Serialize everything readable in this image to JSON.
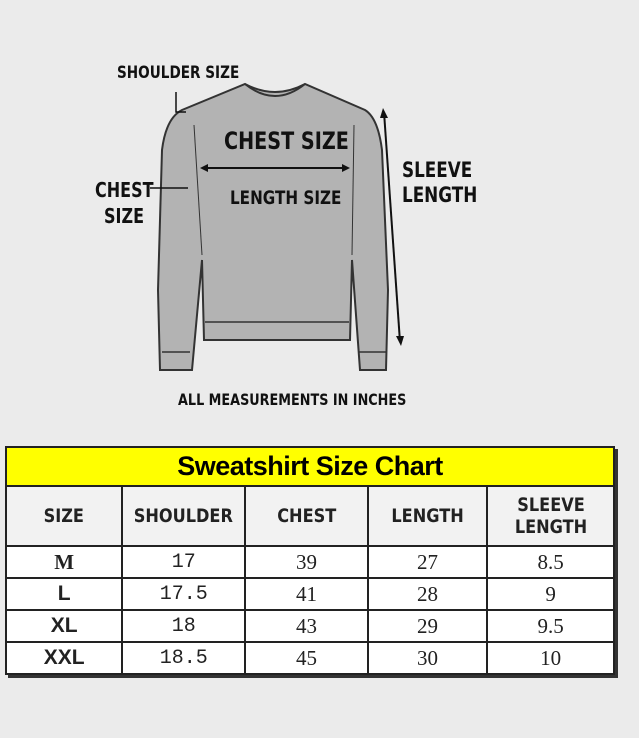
{
  "diagram": {
    "labels": {
      "shoulder": "SHOULDER SIZE",
      "chest_side": "CHEST",
      "chest_side2": "SIZE",
      "chest_center": "CHEST SIZE",
      "length_center": "LENGTH SIZE",
      "sleeve": "SLEEVE",
      "sleeve2": "LENGTH",
      "note": "ALL MEASUREMENTS IN INCHES"
    },
    "colors": {
      "shirt": "#b3b3b3",
      "title_bg": "#ffff00"
    }
  },
  "table": {
    "title": "Sweatshirt Size Chart",
    "headers": [
      "SIZE",
      "SHOULDER",
      "CHEST",
      "LENGTH",
      "SLEEVE LENGTH"
    ],
    "rows": [
      [
        "M",
        "17",
        "39",
        "27",
        "8.5"
      ],
      [
        "L",
        "17.5",
        "41",
        "28",
        "9"
      ],
      [
        "XL",
        "18",
        "43",
        "29",
        "9.5"
      ],
      [
        "XXL",
        "18.5",
        "45",
        "30",
        "10"
      ]
    ]
  }
}
